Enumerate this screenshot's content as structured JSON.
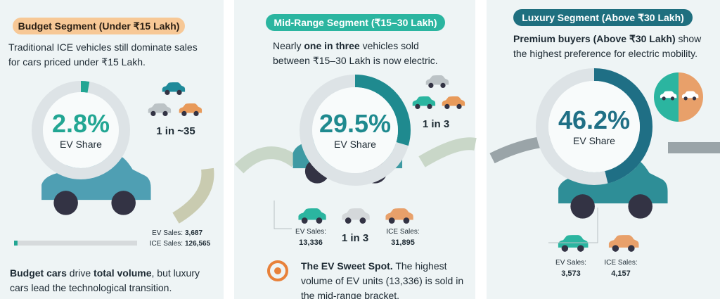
{
  "panels": [
    {
      "title": "Budget Segment (Under ₹15 Lakh)",
      "text": [
        "Traditional ICE vehicles still dominate sales for cars priced under ₹15 Lakh."
      ],
      "share": 2.8,
      "share_label": "2.8%",
      "share_caption": "EV Share",
      "ratio": "1 in ~35",
      "ev_sales_label": "EV Sales:",
      "ev_sales": {
        "value": 3687,
        "label": "3,687"
      },
      "ice_sales_label": "ICE Sales:",
      "ice_sales": {
        "value": 126565,
        "label": "126,565"
      },
      "footer": [
        "Budget cars",
        " drive ",
        "total volume",
        ", but luxury cars lead the technological transition."
      ]
    },
    {
      "title": "Mid-Range Segment (₹15–30 Lakh)",
      "text": [
        "Nearly ",
        "one in three",
        " vehicles sold between ₹15–30 Lakh is now electric."
      ],
      "share": 29.5,
      "share_label": "29.5%",
      "share_caption": "EV Share",
      "ratio": "1 in 3",
      "ev_sales_label": "EV Sales:",
      "ev_sales": {
        "value": 13336,
        "label": "13,336"
      },
      "ice_sales_label": "ICE Sales:",
      "ice_sales": {
        "value": 31895,
        "label": "31,895"
      },
      "middle_ratio": "1 in 3",
      "footer": [
        "The EV Sweet Spot.",
        " The highest volume of EV units (13,336) is sold in the mid-range bracket."
      ]
    },
    {
      "title": "Luxury Segment (Above ₹30 Lakh)",
      "text": [
        "Premium buyers (Above ₹30 Lakh)",
        " show the highest preference for electric mobility."
      ],
      "share": 46.2,
      "share_label": "46.2%",
      "share_caption": "EV Share",
      "ev_sales_label": "EV Sales:",
      "ev_sales": {
        "value": 3573,
        "label": "3,573"
      },
      "ice_sales_label": "ICE Sales:",
      "ice_sales": {
        "value": 4157,
        "label": "4,157"
      }
    }
  ]
}
